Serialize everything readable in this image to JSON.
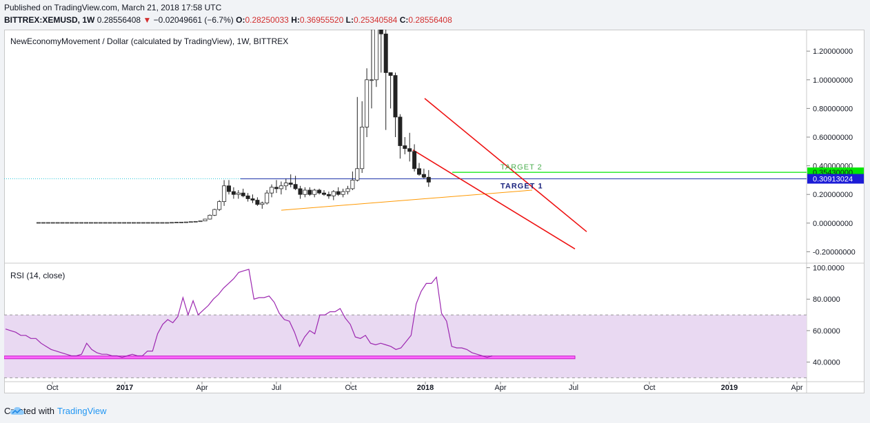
{
  "header": {
    "published": "Published on TradingView.com, March 21, 2018 17:58 UTC",
    "symbol": "BITTREX:XEMUSD, 1W",
    "last": "0.28556408",
    "arrow": "▼",
    "change": "−0.02049661 (−6.7%)",
    "o_label": "O:",
    "o": "0.28250033",
    "h_label": "H:",
    "h": "0.36955520",
    "l_label": "L:",
    "l": "0.25340584",
    "c_label": "C:",
    "c": "0.28556408"
  },
  "footer": {
    "created_with": "Created with",
    "brand": "TradingView"
  },
  "chart_data": [
    {
      "type": "candlestick",
      "title": "NewEconomyMovement / Dollar (calculated by TradingView), 1W, BITTREX",
      "ylim": [
        -0.27,
        1.35
      ],
      "y_ticks": [
        1.2,
        1.0,
        0.8,
        0.6,
        0.4,
        0.2,
        0.0,
        -0.2
      ],
      "y_tick_labels": [
        "1.20000000",
        "1.00000000",
        "0.80000000",
        "0.60000000",
        "0.40000000",
        "0.20000000",
        "0.00000000",
        "-0.20000000"
      ],
      "x_tick_labels": [
        "Oct",
        "2017",
        "Apr",
        "Jul",
        "Oct",
        "2018",
        "Apr",
        "Jul",
        "Oct",
        "2019",
        "Apr"
      ],
      "x_tick_bold": [
        false,
        true,
        false,
        false,
        false,
        true,
        false,
        false,
        false,
        true,
        false
      ],
      "candles": [
        [
          0.004,
          0.004,
          0.003,
          0.004
        ],
        [
          0.004,
          0.004,
          0.003,
          0.004
        ],
        [
          0.004,
          0.004,
          0.003,
          0.004
        ],
        [
          0.004,
          0.004,
          0.003,
          0.004
        ],
        [
          0.004,
          0.004,
          0.003,
          0.004
        ],
        [
          0.004,
          0.004,
          0.003,
          0.004
        ],
        [
          0.004,
          0.004,
          0.003,
          0.004
        ],
        [
          0.004,
          0.004,
          0.003,
          0.004
        ],
        [
          0.004,
          0.004,
          0.003,
          0.004
        ],
        [
          0.004,
          0.004,
          0.003,
          0.004
        ],
        [
          0.004,
          0.004,
          0.003,
          0.004
        ],
        [
          0.004,
          0.004,
          0.003,
          0.004
        ],
        [
          0.004,
          0.004,
          0.003,
          0.004
        ],
        [
          0.004,
          0.004,
          0.003,
          0.004
        ],
        [
          0.004,
          0.004,
          0.003,
          0.004
        ],
        [
          0.004,
          0.004,
          0.003,
          0.004
        ],
        [
          0.004,
          0.004,
          0.003,
          0.004
        ],
        [
          0.004,
          0.004,
          0.003,
          0.004
        ],
        [
          0.004,
          0.004,
          0.003,
          0.004
        ],
        [
          0.004,
          0.004,
          0.003,
          0.004
        ],
        [
          0.004,
          0.004,
          0.003,
          0.004
        ],
        [
          0.004,
          0.004,
          0.003,
          0.004
        ],
        [
          0.004,
          0.004,
          0.003,
          0.004
        ],
        [
          0.004,
          0.004,
          0.003,
          0.004
        ],
        [
          0.004,
          0.004,
          0.003,
          0.004
        ],
        [
          0.004,
          0.004,
          0.003,
          0.004
        ],
        [
          0.004,
          0.004,
          0.003,
          0.004
        ],
        [
          0.004,
          0.004,
          0.003,
          0.004
        ],
        [
          0.004,
          0.005,
          0.003,
          0.005
        ],
        [
          0.005,
          0.006,
          0.004,
          0.006
        ],
        [
          0.006,
          0.007,
          0.005,
          0.007
        ],
        [
          0.007,
          0.008,
          0.006,
          0.008
        ],
        [
          0.008,
          0.01,
          0.007,
          0.01
        ],
        [
          0.01,
          0.013,
          0.009,
          0.012
        ],
        [
          0.012,
          0.016,
          0.011,
          0.015
        ],
        [
          0.015,
          0.03,
          0.014,
          0.028
        ],
        [
          0.028,
          0.06,
          0.025,
          0.055
        ],
        [
          0.055,
          0.1,
          0.05,
          0.095
        ],
        [
          0.095,
          0.16,
          0.085,
          0.15
        ],
        [
          0.15,
          0.3,
          0.12,
          0.26
        ],
        [
          0.26,
          0.3,
          0.2,
          0.22
        ],
        [
          0.22,
          0.25,
          0.17,
          0.2
        ],
        [
          0.2,
          0.23,
          0.17,
          0.21
        ],
        [
          0.21,
          0.24,
          0.18,
          0.19
        ],
        [
          0.19,
          0.21,
          0.15,
          0.17
        ],
        [
          0.17,
          0.2,
          0.14,
          0.16
        ],
        [
          0.16,
          0.18,
          0.12,
          0.13
        ],
        [
          0.13,
          0.15,
          0.1,
          0.14
        ],
        [
          0.14,
          0.23,
          0.13,
          0.21
        ],
        [
          0.21,
          0.27,
          0.18,
          0.25
        ],
        [
          0.25,
          0.3,
          0.21,
          0.24
        ],
        [
          0.24,
          0.29,
          0.2,
          0.26
        ],
        [
          0.26,
          0.31,
          0.23,
          0.28
        ],
        [
          0.28,
          0.34,
          0.25,
          0.27
        ],
        [
          0.27,
          0.33,
          0.23,
          0.24
        ],
        [
          0.24,
          0.26,
          0.17,
          0.2
        ],
        [
          0.2,
          0.25,
          0.18,
          0.23
        ],
        [
          0.23,
          0.25,
          0.19,
          0.2
        ],
        [
          0.2,
          0.24,
          0.18,
          0.23
        ],
        [
          0.23,
          0.24,
          0.2,
          0.21
        ],
        [
          0.21,
          0.23,
          0.19,
          0.2
        ],
        [
          0.2,
          0.22,
          0.17,
          0.19
        ],
        [
          0.19,
          0.23,
          0.16,
          0.22
        ],
        [
          0.22,
          0.25,
          0.19,
          0.2
        ],
        [
          0.2,
          0.24,
          0.18,
          0.22
        ],
        [
          0.22,
          0.26,
          0.2,
          0.24
        ],
        [
          0.24,
          0.36,
          0.23,
          0.3
        ],
        [
          0.3,
          0.88,
          0.29,
          0.38
        ],
        [
          0.38,
          0.85,
          0.35,
          0.67
        ],
        [
          0.67,
          1.08,
          0.6,
          1.0
        ],
        [
          1.0,
          1.35,
          0.8,
          1.0
        ],
        [
          1.0,
          1.4,
          0.95,
          1.37
        ],
        [
          1.35,
          1.38,
          1.05,
          1.32
        ],
        [
          1.32,
          1.38,
          0.65,
          1.05
        ],
        [
          1.05,
          1.05,
          0.8,
          1.03
        ],
        [
          1.03,
          1.05,
          0.6,
          0.74
        ],
        [
          0.74,
          0.76,
          0.45,
          0.54
        ],
        [
          0.54,
          0.6,
          0.48,
          0.52
        ],
        [
          0.52,
          0.63,
          0.43,
          0.5
        ],
        [
          0.5,
          0.55,
          0.36,
          0.38
        ],
        [
          0.38,
          0.42,
          0.33,
          0.34
        ],
        [
          0.34,
          0.38,
          0.31,
          0.32
        ],
        [
          0.32,
          0.37,
          0.253,
          0.286
        ]
      ],
      "annotations": [
        {
          "text": "TARGET 2",
          "color": "#4caf50"
        },
        {
          "text": "TARGET 1",
          "color": "#1a237e"
        }
      ],
      "price_labels": [
        {
          "value": 0.3543,
          "text": "0.35430000",
          "bg": "#00e600",
          "fg": "#131722"
        },
        {
          "value": 0.30913024,
          "text": "0.30913024",
          "bg": "#1c1cd6",
          "fg": "#ffffff"
        }
      ]
    },
    {
      "type": "line",
      "title": "RSI (14, close)",
      "ylim": [
        28,
        102
      ],
      "y_ticks": [
        100,
        80,
        60,
        40
      ],
      "y_tick_labels": [
        "100.0000",
        "80.0000",
        "60.0000",
        "40.0000"
      ],
      "band": [
        30,
        70
      ],
      "series": [
        {
          "color": "#9c27b0",
          "values": [
            61,
            60,
            59,
            57,
            57,
            55,
            55,
            52,
            50,
            48,
            47,
            46,
            45,
            44,
            44,
            45,
            52,
            48,
            46,
            45,
            45,
            44,
            44,
            43,
            44,
            45,
            44,
            44,
            47,
            47,
            58,
            64,
            67,
            65,
            69,
            81,
            70,
            79,
            70,
            73,
            76,
            80,
            83,
            87,
            90,
            93,
            97,
            98,
            99,
            80,
            81,
            81,
            82,
            78,
            71,
            67,
            66,
            59,
            50,
            56,
            60,
            58,
            70,
            70,
            72,
            72,
            74,
            68,
            64,
            56,
            55,
            57,
            52,
            51,
            52,
            51,
            50,
            48,
            49,
            53,
            57,
            77,
            85,
            90,
            90,
            94,
            71,
            66,
            50,
            49,
            49,
            48,
            46,
            45,
            44,
            43,
            44
          ]
        }
      ]
    }
  ]
}
